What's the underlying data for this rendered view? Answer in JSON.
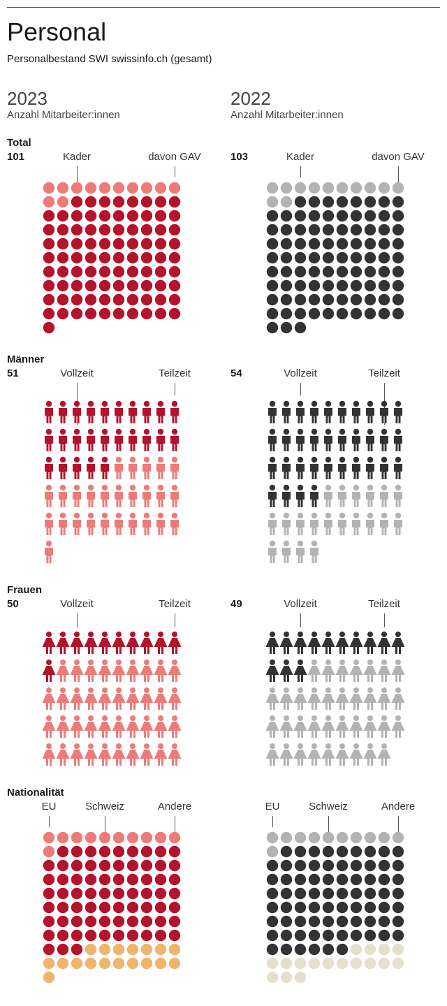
{
  "header": {
    "title": "Personal",
    "subtitle": "Personalbestand SWI swissinfo.ch (gesamt)"
  },
  "years": [
    {
      "year": "2023",
      "sub": "Anzahl Mitarbeiter:innen"
    },
    {
      "year": "2022",
      "sub": "Anzahl Mitarbeiter:innen"
    }
  ],
  "colors": {
    "red_dark": "#b5122b",
    "red_light": "#ee7b78",
    "orange": "#f0b56c",
    "gray_dark": "#333333",
    "gray_light": "#b3b3b3",
    "beige": "#e4e0cc"
  },
  "sections": {
    "total": {
      "title": "Total",
      "a": "Kader",
      "b": "davon GAV"
    },
    "maenner": {
      "title": "Männer",
      "a": "Vollzeit",
      "b": "Teilzeit"
    },
    "frauen": {
      "title": "Frauen",
      "a": "Vollzeit",
      "b": "Teilzeit"
    },
    "nationalitaet": {
      "title": "Nationalität",
      "a": "EU",
      "b": "Schweiz",
      "c": "Andere"
    }
  },
  "counts": {
    "total_2023": "101",
    "total_2022": "103",
    "maenner_2023": "51",
    "maenner_2022": "54",
    "frauen_2023": "50",
    "frauen_2022": "49"
  },
  "chart_data": [
    {
      "type": "waffle",
      "section": "Total",
      "year": "2023",
      "unit": "circle",
      "groups": [
        {
          "name": "Kader",
          "value": 12,
          "color": "#ee7b78"
        },
        {
          "name": "GAV",
          "value": 89,
          "color": "#b5122b"
        }
      ]
    },
    {
      "type": "waffle",
      "section": "Total",
      "year": "2022",
      "unit": "circle",
      "groups": [
        {
          "name": "Kader",
          "value": 12,
          "color": "#b3b3b3"
        },
        {
          "name": "GAV",
          "value": 91,
          "color": "#333333"
        }
      ]
    },
    {
      "type": "waffle",
      "section": "Männer",
      "year": "2023",
      "unit": "man",
      "groups": [
        {
          "name": "Vollzeit",
          "value": 25,
          "color": "#b5122b"
        },
        {
          "name": "Teilzeit",
          "value": 26,
          "color": "#ee7b78"
        }
      ]
    },
    {
      "type": "waffle",
      "section": "Männer",
      "year": "2022",
      "unit": "man",
      "groups": [
        {
          "name": "Vollzeit",
          "value": 34,
          "color": "#333333"
        },
        {
          "name": "Teilzeit",
          "value": 20,
          "color": "#b3b3b3"
        }
      ]
    },
    {
      "type": "waffle",
      "section": "Frauen",
      "year": "2023",
      "unit": "woman",
      "groups": [
        {
          "name": "Vollzeit",
          "value": 11,
          "color": "#b5122b"
        },
        {
          "name": "Teilzeit",
          "value": 39,
          "color": "#ee7b78"
        }
      ]
    },
    {
      "type": "waffle",
      "section": "Frauen",
      "year": "2022",
      "unit": "woman",
      "groups": [
        {
          "name": "Vollzeit",
          "value": 13,
          "color": "#333333"
        },
        {
          "name": "Teilzeit",
          "value": 36,
          "color": "#b3b3b3"
        }
      ]
    },
    {
      "type": "waffle",
      "section": "Nationalität",
      "year": "2023",
      "unit": "circle",
      "groups": [
        {
          "name": "EU",
          "value": 11,
          "color": "#ee7b78"
        },
        {
          "name": "Schweiz",
          "value": 72,
          "color": "#b5122b"
        },
        {
          "name": "Andere",
          "value": 18,
          "color": "#f0b56c"
        }
      ]
    },
    {
      "type": "waffle",
      "section": "Nationalität",
      "year": "2022",
      "unit": "circle",
      "groups": [
        {
          "name": "EU",
          "value": 11,
          "color": "#b3b3b3"
        },
        {
          "name": "Schweiz",
          "value": 75,
          "color": "#333333"
        },
        {
          "name": "Andere",
          "value": 17,
          "color": "#e4e0cc"
        }
      ]
    }
  ]
}
